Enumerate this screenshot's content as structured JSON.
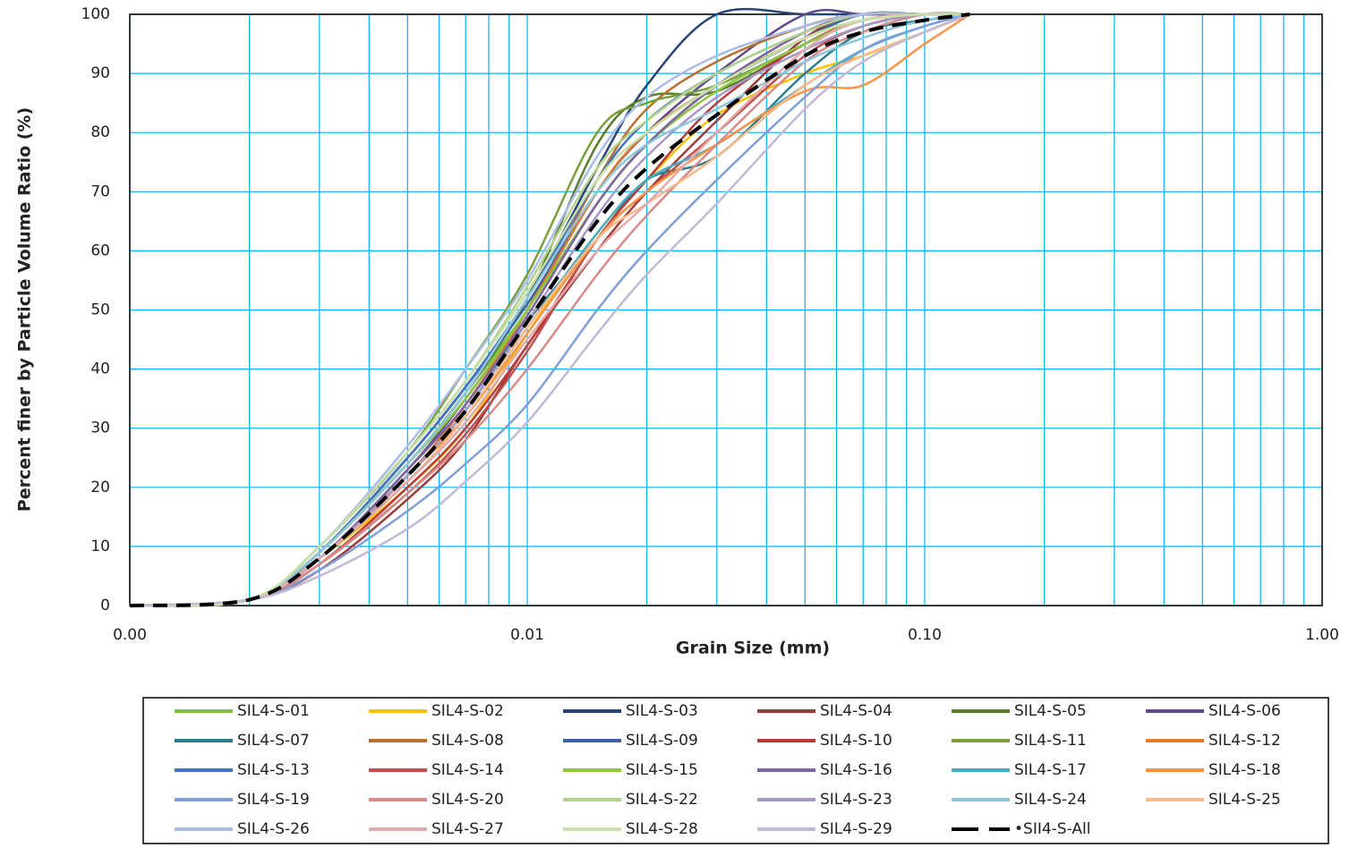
{
  "chart_data": {
    "type": "line",
    "x_label": "Grain Size (mm)",
    "y_label": "Percent finer by Particle Volume Ratio (%)",
    "x_scale": "log",
    "xlim": [
      0.001,
      1
    ],
    "xticks": [
      {
        "value": 0.001,
        "label": "0.00"
      },
      {
        "value": 0.01,
        "label": "0.01"
      },
      {
        "value": 0.1,
        "label": "0.10"
      },
      {
        "value": 1,
        "label": "1.00"
      }
    ],
    "xgrid_minor": [
      0.002,
      0.003,
      0.004,
      0.005,
      0.006,
      0.007,
      0.008,
      0.009,
      0.02,
      0.03,
      0.04,
      0.05,
      0.06,
      0.07,
      0.08,
      0.09,
      0.2,
      0.3,
      0.4,
      0.5,
      0.6,
      0.7,
      0.8,
      0.9
    ],
    "ylim": [
      0,
      100
    ],
    "yticks": [
      0,
      10,
      20,
      30,
      40,
      50,
      60,
      70,
      80,
      90,
      100
    ],
    "grid": true,
    "grid_color": "#00b0f0",
    "legend": "bottom",
    "x": [
      0.001,
      0.002,
      0.003,
      0.005,
      0.007,
      0.01,
      0.015,
      0.02,
      0.03,
      0.05,
      0.07,
      0.1,
      0.13
    ],
    "series": [
      {
        "name": "SIL4-S-01",
        "color": "#7fc241",
        "values": [
          0,
          1,
          9,
          24,
          36,
          50,
          68,
          78,
          88,
          96,
          99,
          100,
          100
        ]
      },
      {
        "name": "SIL4-S-02",
        "color": "#ffc000",
        "values": [
          0,
          1,
          8,
          20,
          30,
          46,
          63,
          72,
          83,
          90,
          93,
          97,
          100
        ]
      },
      {
        "name": "SIL4-S-03",
        "color": "#264478",
        "values": [
          0,
          1,
          9,
          25,
          37,
          52,
          74,
          88,
          100,
          100,
          100,
          100,
          100
        ]
      },
      {
        "name": "SIL4-S-04",
        "color": "#9e3a38",
        "values": [
          0,
          1,
          6,
          18,
          28,
          44,
          60,
          70,
          82,
          96,
          100,
          100,
          100
        ]
      },
      {
        "name": "SIL4-S-05",
        "color": "#5b7c2e",
        "values": [
          0,
          1,
          9,
          24,
          36,
          52,
          78,
          86,
          87,
          95,
          99,
          100,
          100
        ]
      },
      {
        "name": "SIL4-S-06",
        "color": "#5f4b8b",
        "values": [
          0,
          1,
          8,
          23,
          35,
          50,
          70,
          80,
          90,
          100,
          100,
          100,
          100
        ]
      },
      {
        "name": "SIL4-S-07",
        "color": "#2c7c8c",
        "values": [
          0,
          1,
          8,
          22,
          33,
          48,
          62,
          72,
          76,
          90,
          97,
          99,
          100
        ]
      },
      {
        "name": "SIL4-S-08",
        "color": "#b8702e",
        "values": [
          0,
          1,
          8,
          22,
          34,
          50,
          72,
          84,
          92,
          98,
          100,
          100,
          100
        ]
      },
      {
        "name": "SIL4-S-09",
        "color": "#3a62a8",
        "values": [
          0,
          1,
          9,
          25,
          37,
          51,
          70,
          80,
          88,
          96,
          100,
          100,
          100
        ]
      },
      {
        "name": "SIL4-S-10",
        "color": "#b83c3c",
        "values": [
          0,
          1,
          7,
          20,
          30,
          44,
          62,
          72,
          85,
          95,
          99,
          100,
          100
        ]
      },
      {
        "name": "SIL4-S-11",
        "color": "#77a03c",
        "values": [
          0,
          1,
          10,
          26,
          40,
          56,
          80,
          85,
          88,
          95,
          99,
          100,
          100
        ]
      },
      {
        "name": "SIL4-S-12",
        "color": "#e07b2e",
        "values": [
          0,
          1,
          8,
          22,
          34,
          50,
          70,
          80,
          88,
          96,
          99,
          100,
          100
        ]
      },
      {
        "name": "SIL4-S-13",
        "color": "#4472c4",
        "values": [
          0,
          1,
          9,
          25,
          37,
          52,
          72,
          82,
          90,
          97,
          100,
          100,
          100
        ]
      },
      {
        "name": "SIL4-S-14",
        "color": "#c0504d",
        "values": [
          0,
          1,
          7,
          19,
          29,
          43,
          62,
          70,
          80,
          93,
          98,
          100,
          100
        ]
      },
      {
        "name": "SIL4-S-15",
        "color": "#8ec63f",
        "values": [
          0,
          1,
          9,
          24,
          35,
          50,
          68,
          78,
          87,
          95,
          99,
          100,
          100
        ]
      },
      {
        "name": "SIL4-S-16",
        "color": "#8064a2",
        "values": [
          0,
          1,
          8,
          23,
          34,
          49,
          68,
          78,
          88,
          97,
          100,
          100,
          100
        ]
      },
      {
        "name": "SIL4-S-17",
        "color": "#4bacc6",
        "values": [
          0,
          1,
          8,
          21,
          32,
          47,
          63,
          72,
          78,
          88,
          94,
          98,
          100
        ]
      },
      {
        "name": "SIL4-S-18",
        "color": "#f79646",
        "values": [
          0,
          1,
          8,
          22,
          32,
          46,
          62,
          70,
          78,
          87,
          88,
          95,
          100
        ]
      },
      {
        "name": "SIL4-S-19",
        "color": "#7f9fd6",
        "values": [
          0,
          1,
          6,
          16,
          24,
          34,
          50,
          60,
          72,
          86,
          94,
          98,
          100
        ]
      },
      {
        "name": "SIL4-S-20",
        "color": "#d88a87",
        "values": [
          0,
          1,
          7,
          19,
          28,
          40,
          56,
          66,
          78,
          92,
          97,
          100,
          100
        ]
      },
      {
        "name": "SIL4-S-22",
        "color": "#b3d28a",
        "values": [
          0,
          1,
          10,
          26,
          38,
          54,
          74,
          82,
          90,
          97,
          100,
          100,
          100
        ]
      },
      {
        "name": "SIL4-S-23",
        "color": "#a898c4",
        "values": [
          0,
          1,
          8,
          22,
          33,
          48,
          66,
          76,
          86,
          94,
          98,
          100,
          100
        ]
      },
      {
        "name": "SIL4-S-24",
        "color": "#8fc6db",
        "values": [
          0,
          1,
          9,
          24,
          36,
          52,
          70,
          78,
          84,
          92,
          96,
          99,
          100
        ]
      },
      {
        "name": "SIL4-S-25",
        "color": "#f8b98c",
        "values": [
          0,
          1,
          8,
          21,
          32,
          47,
          62,
          68,
          76,
          88,
          93,
          97,
          100
        ]
      },
      {
        "name": "SIL4-S-26",
        "color": "#a9bde6",
        "values": [
          0,
          1,
          10,
          27,
          40,
          55,
          76,
          86,
          93,
          98,
          100,
          100,
          100
        ]
      },
      {
        "name": "SIL4-S-27",
        "color": "#e3aaa9",
        "values": [
          0,
          1,
          8,
          21,
          31,
          45,
          60,
          68,
          80,
          94,
          99,
          100,
          100
        ]
      },
      {
        "name": "SIL4-S-28",
        "color": "#c8e0a8",
        "values": [
          0,
          1,
          10,
          26,
          38,
          53,
          72,
          80,
          88,
          96,
          99,
          100,
          100
        ]
      },
      {
        "name": "SIL4-S-29",
        "color": "#c2b8d8",
        "values": [
          0,
          1,
          5,
          13,
          21,
          31,
          46,
          56,
          68,
          84,
          92,
          97,
          100
        ]
      },
      {
        "name": "•SII4-S-All",
        "color": "#000000",
        "dashed": true,
        "values": [
          0,
          1,
          8,
          22,
          33,
          48,
          65,
          74,
          83,
          93,
          97,
          99,
          100
        ]
      }
    ]
  }
}
